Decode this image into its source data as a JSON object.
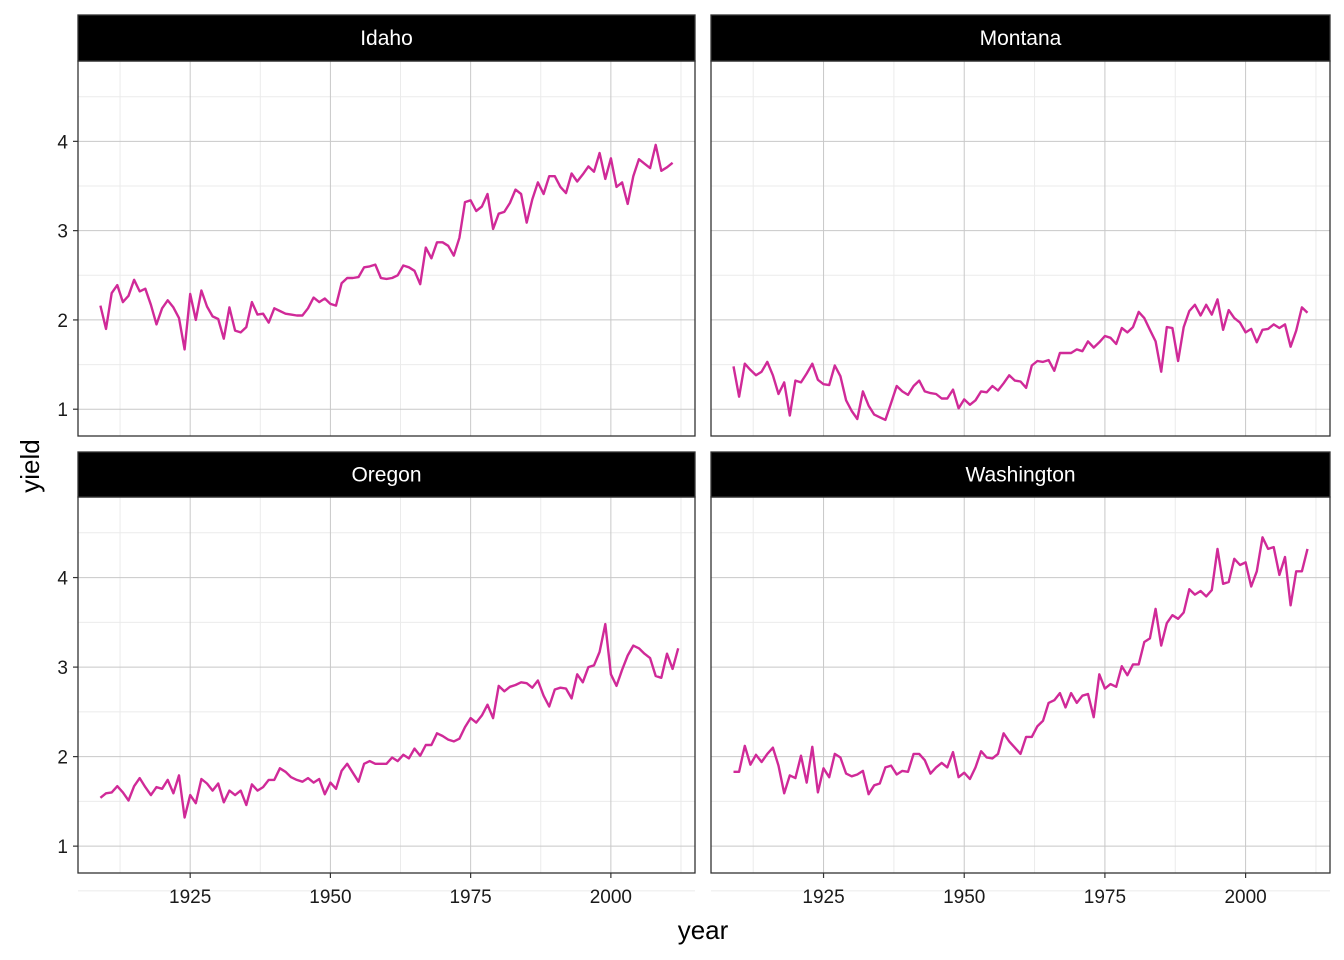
{
  "chart_data": {
    "type": "line",
    "xlabel": "year",
    "ylabel": "yield",
    "xlim": [
      1905,
      2015
    ],
    "ylim": [
      0.7,
      4.9
    ],
    "x_ticks": [
      1925,
      1950,
      1975,
      2000
    ],
    "y_ticks": [
      1,
      2,
      3,
      4
    ],
    "x_tick_labels": [
      "1925",
      "1950",
      "1975",
      "2000"
    ],
    "y_tick_labels": [
      "1",
      "2",
      "3",
      "4"
    ],
    "line_color": "#d02a98",
    "strip_color": "#000000",
    "grid": true,
    "x_start": 1909,
    "panels": [
      {
        "title": "Idaho",
        "values": [
          2.16,
          1.9,
          2.3,
          2.39,
          2.2,
          2.27,
          2.45,
          2.32,
          2.35,
          2.17,
          1.95,
          2.13,
          2.22,
          2.14,
          2.02,
          1.67,
          2.29,
          2.0,
          2.33,
          2.15,
          2.04,
          2.01,
          1.79,
          2.14,
          1.88,
          1.86,
          1.92,
          2.2,
          2.06,
          2.07,
          1.97,
          2.13,
          2.1,
          2.07,
          2.06,
          2.05,
          2.05,
          2.13,
          2.25,
          2.2,
          2.24,
          2.18,
          2.16,
          2.41,
          2.47,
          2.47,
          2.48,
          2.59,
          2.6,
          2.62,
          2.47,
          2.46,
          2.47,
          2.5,
          2.61,
          2.59,
          2.55,
          2.4,
          2.81,
          2.69,
          2.87,
          2.87,
          2.83,
          2.72,
          2.92,
          3.32,
          3.34,
          3.22,
          3.27,
          3.41,
          3.02,
          3.19,
          3.21,
          3.31,
          3.46,
          3.41,
          3.09,
          3.35,
          3.54,
          3.41,
          3.61,
          3.61,
          3.49,
          3.42,
          3.64,
          3.55,
          3.63,
          3.72,
          3.66,
          3.87,
          3.58,
          3.81,
          3.49,
          3.54,
          3.3,
          3.61,
          3.8,
          3.75,
          3.7,
          3.96,
          3.67,
          3.71,
          3.76
        ]
      },
      {
        "title": "Montana",
        "values": [
          1.48,
          1.14,
          1.51,
          1.44,
          1.38,
          1.42,
          1.53,
          1.38,
          1.17,
          1.3,
          0.93,
          1.32,
          1.3,
          1.4,
          1.51,
          1.33,
          1.28,
          1.27,
          1.49,
          1.37,
          1.1,
          0.98,
          0.89,
          1.2,
          1.04,
          0.94,
          0.91,
          0.88,
          1.07,
          1.26,
          1.2,
          1.16,
          1.26,
          1.32,
          1.2,
          1.18,
          1.17,
          1.12,
          1.12,
          1.22,
          1.01,
          1.11,
          1.05,
          1.1,
          1.2,
          1.19,
          1.26,
          1.21,
          1.29,
          1.38,
          1.32,
          1.31,
          1.24,
          1.49,
          1.54,
          1.53,
          1.55,
          1.43,
          1.63,
          1.63,
          1.63,
          1.67,
          1.65,
          1.76,
          1.69,
          1.75,
          1.82,
          1.8,
          1.73,
          1.91,
          1.86,
          1.92,
          2.09,
          2.02,
          1.89,
          1.76,
          1.42,
          1.92,
          1.91,
          1.54,
          1.92,
          2.1,
          2.17,
          2.05,
          2.17,
          2.06,
          2.23,
          1.89,
          2.11,
          2.02,
          1.97,
          1.86,
          1.9,
          1.75,
          1.89,
          1.9,
          1.95,
          1.91,
          1.95,
          1.7,
          1.88,
          2.14,
          2.08
        ]
      },
      {
        "title": "Oregon",
        "values": [
          1.54,
          1.59,
          1.6,
          1.67,
          1.6,
          1.51,
          1.67,
          1.76,
          1.66,
          1.57,
          1.66,
          1.64,
          1.74,
          1.59,
          1.79,
          1.32,
          1.57,
          1.48,
          1.75,
          1.7,
          1.62,
          1.7,
          1.49,
          1.62,
          1.57,
          1.62,
          1.46,
          1.69,
          1.62,
          1.66,
          1.74,
          1.74,
          1.87,
          1.83,
          1.77,
          1.74,
          1.72,
          1.76,
          1.71,
          1.75,
          1.58,
          1.71,
          1.64,
          1.84,
          1.92,
          1.82,
          1.72,
          1.92,
          1.95,
          1.92,
          1.92,
          1.92,
          1.99,
          1.95,
          2.02,
          1.98,
          2.09,
          2.01,
          2.13,
          2.13,
          2.26,
          2.23,
          2.19,
          2.17,
          2.2,
          2.33,
          2.43,
          2.38,
          2.46,
          2.58,
          2.43,
          2.79,
          2.73,
          2.78,
          2.8,
          2.83,
          2.82,
          2.77,
          2.85,
          2.68,
          2.56,
          2.75,
          2.77,
          2.76,
          2.65,
          2.92,
          2.83,
          3.0,
          3.02,
          3.17,
          3.48,
          2.92,
          2.79,
          2.97,
          3.13,
          3.24,
          3.21,
          3.15,
          3.1,
          2.9,
          2.88,
          3.15,
          2.98,
          3.21
        ]
      },
      {
        "title": "Washington",
        "values": [
          1.83,
          1.83,
          2.12,
          1.91,
          2.02,
          1.94,
          2.03,
          2.1,
          1.9,
          1.59,
          1.79,
          1.76,
          2.01,
          1.71,
          2.11,
          1.6,
          1.87,
          1.77,
          2.03,
          1.99,
          1.81,
          1.78,
          1.8,
          1.84,
          1.58,
          1.68,
          1.7,
          1.88,
          1.9,
          1.8,
          1.84,
          1.83,
          2.03,
          2.03,
          1.96,
          1.81,
          1.88,
          1.93,
          1.88,
          2.05,
          1.77,
          1.82,
          1.75,
          1.88,
          2.06,
          1.99,
          1.98,
          2.03,
          2.26,
          2.17,
          2.1,
          2.03,
          2.22,
          2.22,
          2.34,
          2.4,
          2.6,
          2.63,
          2.71,
          2.55,
          2.71,
          2.6,
          2.68,
          2.7,
          2.44,
          2.92,
          2.76,
          2.81,
          2.78,
          3.01,
          2.91,
          3.03,
          3.03,
          3.28,
          3.32,
          3.65,
          3.24,
          3.49,
          3.58,
          3.54,
          3.61,
          3.87,
          3.81,
          3.85,
          3.79,
          3.86,
          4.32,
          3.93,
          3.95,
          4.21,
          4.14,
          4.17,
          3.9,
          4.07,
          4.45,
          4.32,
          4.34,
          4.03,
          4.23,
          3.69,
          4.07,
          4.07,
          4.32
        ]
      }
    ]
  }
}
